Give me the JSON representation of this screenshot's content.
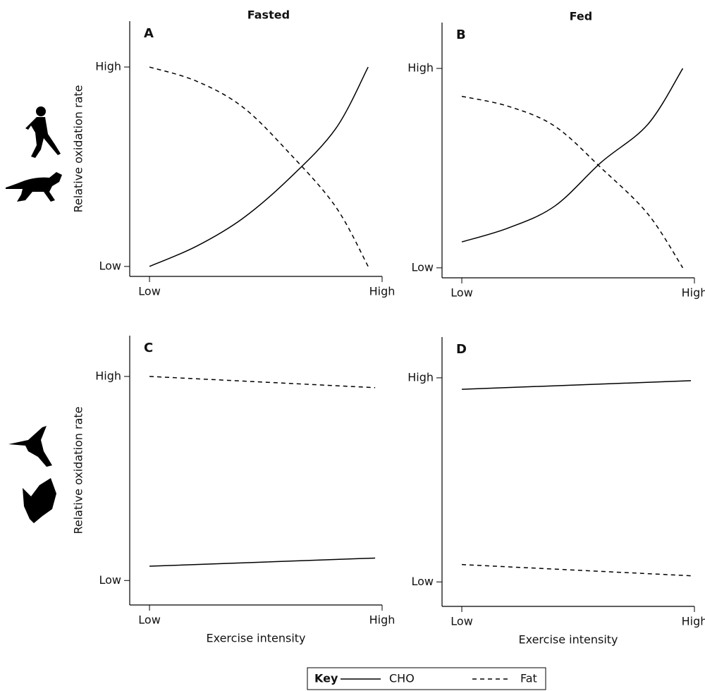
{
  "legend": {
    "title": "Key"
  },
  "chart_data": [
    {
      "type": "line",
      "title": "Fasted",
      "panel_label": "A",
      "y_label": "Relative oxidation rate",
      "xlim": [
        -0.085,
        1.0
      ],
      "ylim": [
        -0.05,
        1.23
      ],
      "xticks": [
        {
          "value": 0,
          "label": "Low"
        },
        {
          "value": 1,
          "label": "High"
        }
      ],
      "yticks": [
        {
          "value": 0,
          "label": "Low"
        },
        {
          "value": 1,
          "label": "High"
        }
      ],
      "x": [
        0,
        0.2,
        0.4,
        0.6,
        0.8,
        0.94
      ],
      "series": [
        {
          "name": "CHO",
          "color": "#000000",
          "dash": "solid",
          "values": [
            0,
            0.1,
            0.24,
            0.44,
            0.69,
            1.0
          ]
        },
        {
          "name": "Fat",
          "color": "#000000",
          "dash": "dashed",
          "values": [
            1.0,
            0.93,
            0.8,
            0.57,
            0.3,
            0.0
          ]
        }
      ]
    },
    {
      "type": "line",
      "title": "Fed",
      "panel_label": "B",
      "xlim": [
        -0.085,
        1.0
      ],
      "ylim": [
        -0.05,
        1.23
      ],
      "xticks": [
        {
          "value": 0,
          "label": "Low"
        },
        {
          "value": 1,
          "label": "High"
        }
      ],
      "yticks": [
        {
          "value": 0,
          "label": "Low"
        },
        {
          "value": 1,
          "label": "High"
        }
      ],
      "x": [
        0,
        0.2,
        0.4,
        0.6,
        0.8,
        0.95
      ],
      "series": [
        {
          "name": "CHO",
          "color": "#000000",
          "dash": "solid",
          "values": [
            0.13,
            0.2,
            0.31,
            0.53,
            0.72,
            1.0
          ]
        },
        {
          "name": "Fat",
          "color": "#000000",
          "dash": "dashed",
          "values": [
            0.86,
            0.81,
            0.71,
            0.5,
            0.27,
            0.0
          ]
        }
      ]
    },
    {
      "type": "line",
      "panel_label": "C",
      "y_label": "Relative oxidation rate",
      "x_label": "Exercise intensity",
      "xlim": [
        -0.085,
        1.0
      ],
      "ylim": [
        -0.12,
        1.2
      ],
      "xticks": [
        {
          "value": 0,
          "label": "Low"
        },
        {
          "value": 1,
          "label": "High"
        }
      ],
      "yticks": [
        {
          "value": 0,
          "label": "Low"
        },
        {
          "value": 1,
          "label": "High"
        }
      ],
      "x": [
        0,
        0.97
      ],
      "series": [
        {
          "name": "CHO",
          "color": "#000000",
          "dash": "solid",
          "values": [
            0.07,
            0.11
          ]
        },
        {
          "name": "Fat",
          "color": "#000000",
          "dash": "dashed",
          "values": [
            1.0,
            0.945
          ]
        }
      ]
    },
    {
      "type": "line",
      "panel_label": "D",
      "x_label": "Exercise intensity",
      "xlim": [
        -0.085,
        1.0
      ],
      "ylim": [
        -0.12,
        1.2
      ],
      "xticks": [
        {
          "value": 0,
          "label": "Low"
        },
        {
          "value": 1,
          "label": "High"
        }
      ],
      "yticks": [
        {
          "value": 0,
          "label": "Low"
        },
        {
          "value": 1,
          "label": "High"
        }
      ],
      "x": [
        0,
        0.985
      ],
      "series": [
        {
          "name": "CHO",
          "color": "#000000",
          "dash": "solid",
          "values": [
            0.944,
            0.986
          ]
        },
        {
          "name": "Fat",
          "color": "#000000",
          "dash": "dashed",
          "values": [
            0.085,
            0.03
          ]
        }
      ]
    }
  ]
}
